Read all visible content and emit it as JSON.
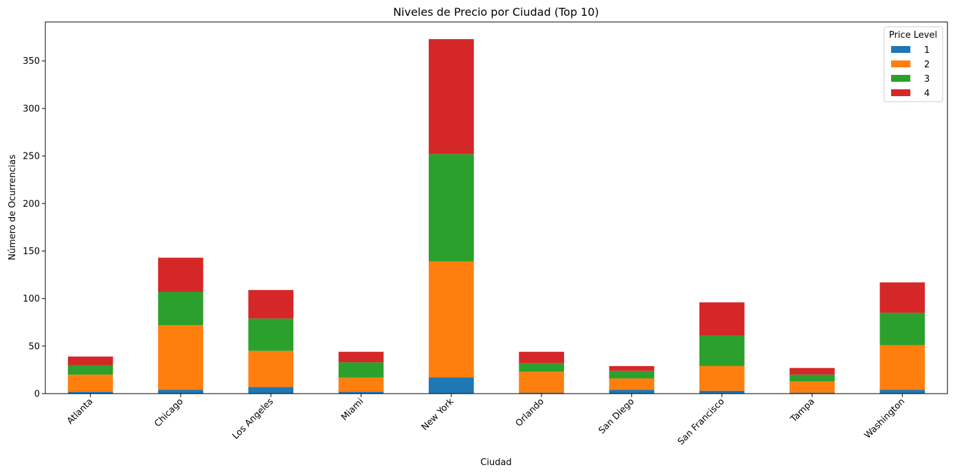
{
  "chart_data": {
    "type": "bar",
    "stacked": true,
    "title": "Niveles de Precio por Ciudad (Top 10)",
    "xlabel": "Ciudad",
    "ylabel": "Número de Ocurrencias",
    "ylim": [
      0,
      391
    ],
    "yticks": [
      0,
      50,
      100,
      150,
      200,
      250,
      300,
      350
    ],
    "grid": false,
    "legend": {
      "title": "Price Level",
      "placement": "top-right"
    },
    "categories": [
      "Atlanta",
      "Chicago",
      "Los Angeles",
      "Miami",
      "New York",
      "Orlando",
      "San Diego",
      "San Francisco",
      "Tampa",
      "Washington"
    ],
    "series": [
      {
        "name": "1",
        "color": "#1f77b4",
        "values": [
          2,
          4,
          7,
          2,
          17,
          1,
          4,
          3,
          1,
          4
        ]
      },
      {
        "name": "2",
        "color": "#ff7f0e",
        "values": [
          18,
          68,
          38,
          15,
          122,
          22,
          12,
          26,
          12,
          47
        ]
      },
      {
        "name": "3",
        "color": "#2ca02c",
        "values": [
          10,
          35,
          34,
          16,
          113,
          9,
          8,
          32,
          7,
          34
        ]
      },
      {
        "name": "4",
        "color": "#d62728",
        "values": [
          9,
          36,
          30,
          11,
          121,
          12,
          5,
          35,
          7,
          32
        ]
      }
    ]
  }
}
